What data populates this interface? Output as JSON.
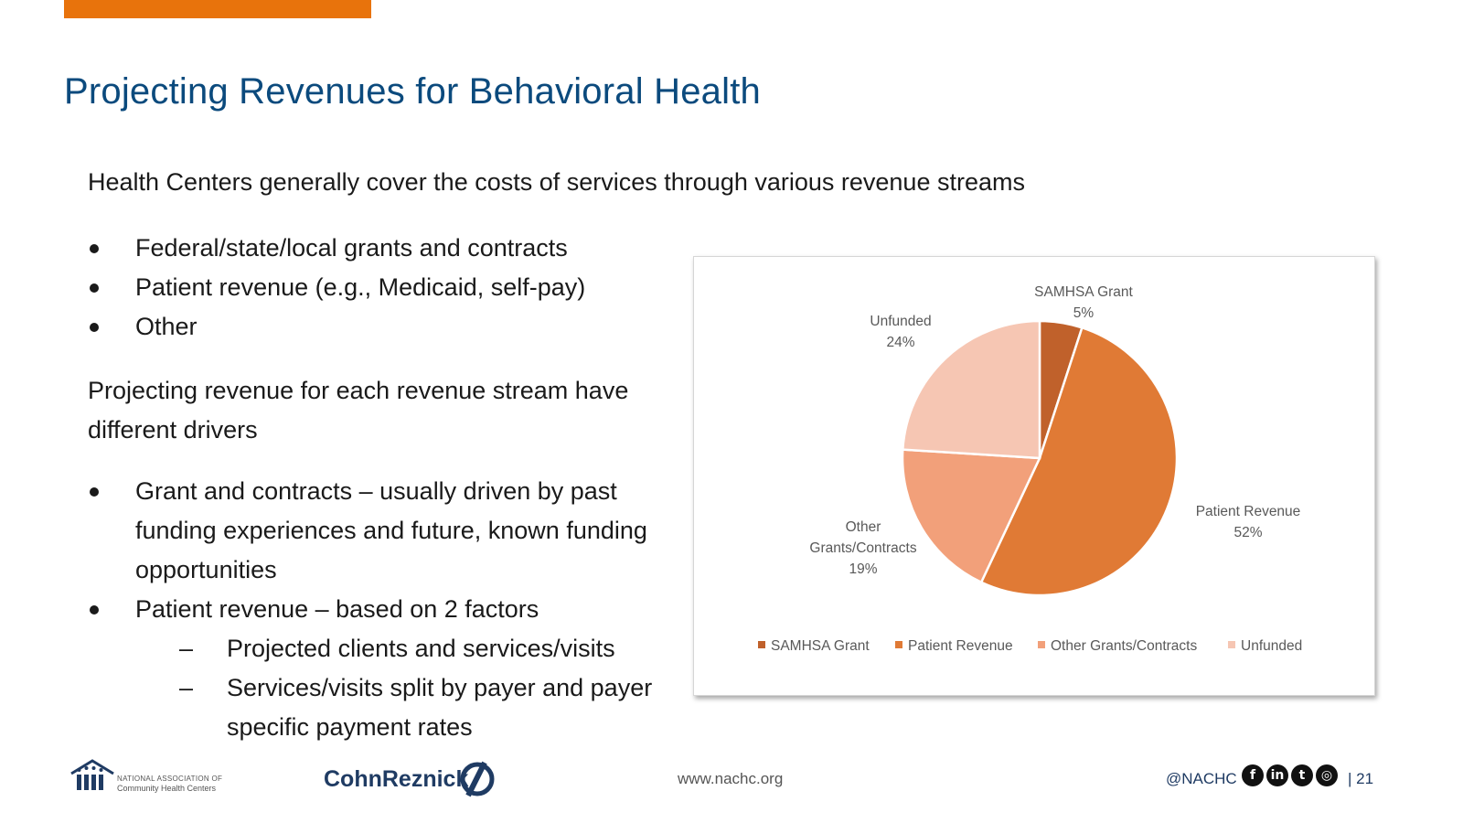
{
  "slide": {
    "title": "Projecting Revenues for Behavioral Health",
    "intro": "Health Centers generally cover the costs of services through various revenue streams",
    "bullets1": [
      "Federal/state/local grants and contracts",
      "Patient revenue (e.g., Medicaid, self-pay)",
      "Other"
    ],
    "para2": "Projecting revenue for each revenue stream have different drivers",
    "bullets2": [
      "Grant and contracts – usually driven by past funding experiences and future, known funding opportunities",
      "Patient revenue – based on 2 factors"
    ],
    "sub_bullets": [
      "Projected clients and services/visits",
      "Services/visits split by payer and payer specific payment rates"
    ]
  },
  "chart_data": {
    "type": "pie",
    "categories": [
      "SAMHSA Grant",
      "Patient Revenue",
      "Other Grants/Contracts",
      "Unfunded"
    ],
    "values": [
      5,
      52,
      19,
      24
    ],
    "value_labels": [
      "5%",
      "52%",
      "19%",
      "24%"
    ],
    "colors": [
      "#C0612B",
      "#E07A35",
      "#F2A07A",
      "#F6C6B3"
    ],
    "legend": "bottom"
  },
  "footer": {
    "org_line1": "NATIONAL ASSOCIATION OF",
    "org_line2": "Community Health Centers",
    "partner": "CohnReznick",
    "website": "www.nachc.org",
    "handle": "@NACHC",
    "social_icons": [
      "facebook-icon",
      "linkedin-icon",
      "twitter-icon",
      "instagram-icon"
    ],
    "page_number": "| 21"
  }
}
